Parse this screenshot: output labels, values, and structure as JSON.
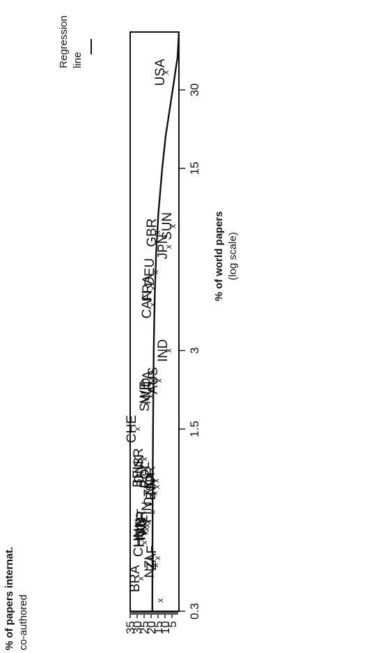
{
  "chart_data": {
    "type": "scatter",
    "title": "",
    "xlabel": "% of world papers",
    "xlabel_note": "(log scale)",
    "ylabel": "% of papers internat.",
    "ylabel_line2": "co-authored",
    "x_scale": "log",
    "xlim": [
      0.3,
      50
    ],
    "ylim": [
      0,
      35
    ],
    "x_ticks": [
      0.3,
      1.5,
      3,
      15,
      30
    ],
    "x_tick_labels": [
      "0.3",
      "1.5",
      "3",
      "15",
      "30"
    ],
    "y_ticks": [
      35,
      30,
      25,
      20,
      15,
      10,
      5
    ],
    "y_tick_labels": [
      "35",
      "30",
      "25",
      "20",
      "15",
      "10",
      "5"
    ],
    "legend": {
      "label": "Regression line",
      "line1": "Regression",
      "line2": "line",
      "position": "top-right"
    },
    "grid": false,
    "points": [
      {
        "code": "BRA",
        "x": 0.4,
        "y": 27.5
      },
      {
        "code": "CHN",
        "x": 0.55,
        "y": 25
      },
      {
        "code": "HUN",
        "x": 0.6,
        "y": 24
      },
      {
        "code": "ISR",
        "x": 0.62,
        "y": 23.5
      },
      {
        "code": "NOR",
        "x": 0.64,
        "y": 23
      },
      {
        "code": "AUT",
        "x": 0.66,
        "y": 22.5
      },
      {
        "code": "BEL",
        "x": 1.0,
        "y": 25.5
      },
      {
        "code": "DNK",
        "x": 1.05,
        "y": 24.5
      },
      {
        "code": "ISR",
        "x": 1.15,
        "y": 25
      },
      {
        "code": "CHE",
        "x": 1.5,
        "y": 30
      },
      {
        "code": "POL",
        "x": 1.0,
        "y": 20.5
      },
      {
        "code": "FIN",
        "x": 0.72,
        "y": 19
      },
      {
        "code": "CZK",
        "x": 0.85,
        "y": 17.5
      },
      {
        "code": "NOR",
        "x": 0.95,
        "y": 16.5
      },
      {
        "code": "ESP",
        "x": 0.9,
        "y": 16
      },
      {
        "code": "NZL",
        "x": 0.45,
        "y": 17
      },
      {
        "code": "ZAF",
        "x": 0.48,
        "y": 15.5
      },
      {
        "code": "SWE",
        "x": 2.0,
        "y": 20.5
      },
      {
        "code": "NLD",
        "x": 2.1,
        "y": 19.5
      },
      {
        "code": "ITA",
        "x": 2.3,
        "y": 18.5
      },
      {
        "code": "AUS",
        "x": 2.3,
        "y": 14.5
      },
      {
        "code": "CAN",
        "x": 4.5,
        "y": 19
      },
      {
        "code": "FRA",
        "x": 5.2,
        "y": 18.5
      },
      {
        "code": "DEU",
        "x": 6.0,
        "y": 17
      },
      {
        "code": "GBR",
        "x": 8.5,
        "y": 15.5
      },
      {
        "code": "IND",
        "x": 3.0,
        "y": 7.5
      },
      {
        "code": "JPN",
        "x": 7.5,
        "y": 7.5
      },
      {
        "code": "SUN",
        "x": 9.0,
        "y": 4.5
      },
      {
        "code": "USA",
        "x": 35,
        "y": 9.5
      }
    ],
    "regression_line": [
      {
        "x": 0.3,
        "y": 19.1
      },
      {
        "x": 0.5,
        "y": 19.0
      },
      {
        "x": 1.0,
        "y": 18.8
      },
      {
        "x": 1.5,
        "y": 18.6
      },
      {
        "x": 2.0,
        "y": 18.4
      },
      {
        "x": 3.0,
        "y": 18.1
      },
      {
        "x": 4.0,
        "y": 17.7
      },
      {
        "x": 5.0,
        "y": 17.3
      },
      {
        "x": 7.0,
        "y": 16.4
      },
      {
        "x": 10,
        "y": 14.8
      },
      {
        "x": 15,
        "y": 12.0
      },
      {
        "x": 20,
        "y": 9.5
      },
      {
        "x": 30,
        "y": 4.5
      },
      {
        "x": 40,
        "y": 1.0
      },
      {
        "x": 50,
        "y": -2.0
      }
    ],
    "extra_mark": {
      "x": 0.33,
      "y": 13.5
    }
  }
}
